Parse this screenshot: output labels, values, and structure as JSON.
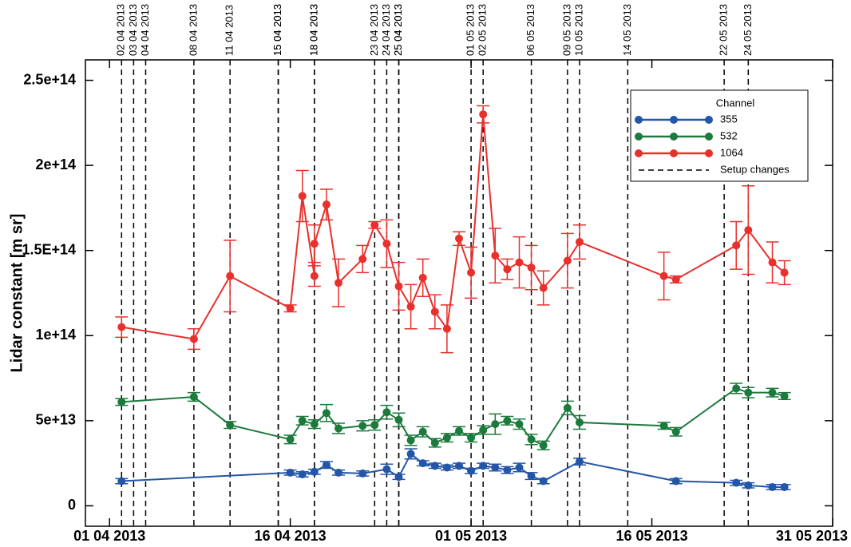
{
  "chart_data": {
    "type": "line",
    "y_label": "Lidar constant [m sr]",
    "legend_title": "Channel",
    "legend_position": "upper right",
    "setup_label": "Setup changes",
    "setup_changes": [
      "02 04 2013",
      "03 04 2013",
      "04 04 2013",
      "08 04 2013",
      "11 04 2013",
      "15 04 2013",
      "15 04 2013",
      "18 04 2013",
      "18 04 2013",
      "23 04 2013",
      "24 04 2013",
      "25 04 2013",
      "25 04 2013",
      "01 05 2013",
      "02 05 2013",
      "06 05 2013",
      "09 05 2013",
      "10 05 2013",
      "14 05 2013",
      "22 05 2013",
      "24 05 2013"
    ],
    "xlim": [
      "2013-03-30",
      "2013-05-31"
    ],
    "xticks": [
      {
        "value": "2013-04-01",
        "label": "01 04 2013"
      },
      {
        "value": "2013-04-16",
        "label": "16 04 2013"
      },
      {
        "value": "2013-05-01",
        "label": "01 05 2013"
      },
      {
        "value": "2013-05-16",
        "label": "16 05 2013"
      },
      {
        "value": "2013-05-31",
        "label": "31 05 2013"
      }
    ],
    "ylim": [
      -12000000000000,
      262000000000000
    ],
    "yticks": [
      0,
      {
        "value": 50000000000000,
        "label": "5e+13"
      },
      {
        "value": 100000000000000,
        "label": "1e+14"
      },
      {
        "value": 150000000000000,
        "label": "1.5E+14"
      },
      {
        "value": 200000000000000,
        "label": "2e+14"
      },
      {
        "value": 250000000000000,
        "label": "2.5e+14"
      }
    ],
    "series": [
      {
        "name": "355",
        "color": "#2356a8",
        "x": [
          "2013-04-02",
          "2013-04-16",
          "2013-04-17",
          "2013-04-18",
          "2013-04-19",
          "2013-04-20",
          "2013-04-22",
          "2013-04-24",
          "2013-04-25",
          "2013-04-26",
          "2013-04-27",
          "2013-04-28",
          "2013-04-29",
          "2013-04-30",
          "2013-05-01",
          "2013-05-02",
          "2013-05-03",
          "2013-05-04",
          "2013-05-05",
          "2013-05-06",
          "2013-05-07",
          "2013-05-10",
          "2013-05-18",
          "2013-05-23",
          "2013-05-24",
          "2013-05-26",
          "2013-05-27"
        ],
        "values": [
          14500000000000,
          19500000000000,
          18500000000000,
          20000000000000,
          24000000000000,
          19500000000000,
          19000000000000,
          21500000000000,
          17000000000000,
          30500000000000,
          25000000000000,
          23500000000000,
          22500000000000,
          23500000000000,
          20500000000000,
          23500000000000,
          22500000000000,
          21000000000000,
          22500000000000,
          17500000000000,
          14500000000000,
          26000000000000,
          14500000000000,
          13500000000000,
          12000000000000,
          11000000000000,
          11000000000000
        ],
        "errors": [
          1500000000000,
          1500000000000,
          1500000000000,
          1500000000000,
          2000000000000,
          1500000000000,
          1500000000000,
          3000000000000,
          1500000000000,
          3000000000000,
          1500000000000,
          1500000000000,
          1500000000000,
          1500000000000,
          1500000000000,
          1500000000000,
          2000000000000,
          2000000000000,
          2500000000000,
          2000000000000,
          1500000000000,
          2000000000000,
          1500000000000,
          1500000000000,
          1500000000000,
          1500000000000,
          1500000000000
        ]
      },
      {
        "name": "532",
        "color": "#1b7a3c",
        "x": [
          "2013-04-02",
          "2013-04-08",
          "2013-04-11",
          "2013-04-16",
          "2013-04-17",
          "2013-04-18",
          "2013-04-19",
          "2013-04-20",
          "2013-04-22",
          "2013-04-23",
          "2013-04-24",
          "2013-04-25",
          "2013-04-26",
          "2013-04-27",
          "2013-04-28",
          "2013-04-29",
          "2013-04-30",
          "2013-05-01",
          "2013-05-02",
          "2013-05-03",
          "2013-05-04",
          "2013-05-05",
          "2013-05-06",
          "2013-05-07",
          "2013-05-09",
          "2013-05-10",
          "2013-05-17",
          "2013-05-18",
          "2013-05-23",
          "2013-05-24",
          "2013-05-26",
          "2013-05-27"
        ],
        "values": [
          61000000000000,
          64000000000000,
          47500000000000,
          39000000000000,
          50000000000000,
          48000000000000,
          54500000000000,
          45500000000000,
          47000000000000,
          47500000000000,
          55000000000000,
          50500000000000,
          38500000000000,
          43500000000000,
          37000000000000,
          40000000000000,
          44000000000000,
          40000000000000,
          44500000000000,
          48000000000000,
          50000000000000,
          48000000000000,
          39000000000000,
          35500000000000,
          57500000000000,
          49000000000000,
          47000000000000,
          43500000000000,
          69000000000000,
          66500000000000,
          66500000000000,
          64500000000000
        ],
        "errors": [
          2000000000000,
          2500000000000,
          2000000000000,
          2500000000000,
          2500000000000,
          2500000000000,
          5000000000000,
          3000000000000,
          3000000000000,
          3000000000000,
          4000000000000,
          4000000000000,
          3000000000000,
          3000000000000,
          2500000000000,
          2500000000000,
          2500000000000,
          2500000000000,
          2500000000000,
          6000000000000,
          2500000000000,
          3000000000000,
          3000000000000,
          2500000000000,
          4000000000000,
          4000000000000,
          2000000000000,
          2500000000000,
          3000000000000,
          3000000000000,
          2500000000000,
          2000000000000
        ]
      },
      {
        "name": "1064",
        "color": "#e8302c",
        "x": [
          "2013-04-02",
          "2013-04-08",
          "2013-04-11",
          "2013-04-16",
          "2013-04-17",
          "2013-04-18",
          "2013-04-18",
          "2013-04-19",
          "2013-04-20",
          "2013-04-22",
          "2013-04-23",
          "2013-04-24",
          "2013-04-25",
          "2013-04-26",
          "2013-04-27",
          "2013-04-28",
          "2013-04-29",
          "2013-04-30",
          "2013-05-01",
          "2013-05-02",
          "2013-05-03",
          "2013-05-04",
          "2013-05-05",
          "2013-05-06",
          "2013-05-07",
          "2013-05-09",
          "2013-05-10",
          "2013-05-17",
          "2013-05-18",
          "2013-05-23",
          "2013-05-24",
          "2013-05-26",
          "2013-05-27"
        ],
        "values": [
          105000000000000,
          98000000000000,
          135000000000000,
          116000000000000,
          182000000000000,
          135000000000000,
          154000000000000,
          177000000000000,
          131000000000000,
          145000000000000,
          165000000000000,
          154000000000000,
          129000000000000,
          117000000000000,
          134000000000000,
          114000000000000,
          104000000000000,
          157000000000000,
          137000000000000,
          230000000000000,
          147000000000000,
          139000000000000,
          143000000000000,
          140000000000000,
          128000000000000,
          144000000000000,
          155000000000000,
          135000000000000,
          133000000000000,
          153000000000000,
          162000000000000,
          143000000000000,
          137000000000000
        ],
        "errors": [
          6000000000000,
          6000000000000,
          21000000000000,
          2000000000000,
          15000000000000,
          6000000000000,
          11000000000000,
          9000000000000,
          14000000000000,
          8000000000000,
          2000000000000,
          14000000000000,
          14000000000000,
          13000000000000,
          11000000000000,
          10000000000000,
          14000000000000,
          4000000000000,
          15000000000000,
          5000000000000,
          16000000000000,
          6000000000000,
          15000000000000,
          13000000000000,
          10000000000000,
          16000000000000,
          10000000000000,
          14000000000000,
          2000000000000,
          14000000000000,
          26000000000000,
          12000000000000,
          7000000000000
        ]
      }
    ]
  }
}
